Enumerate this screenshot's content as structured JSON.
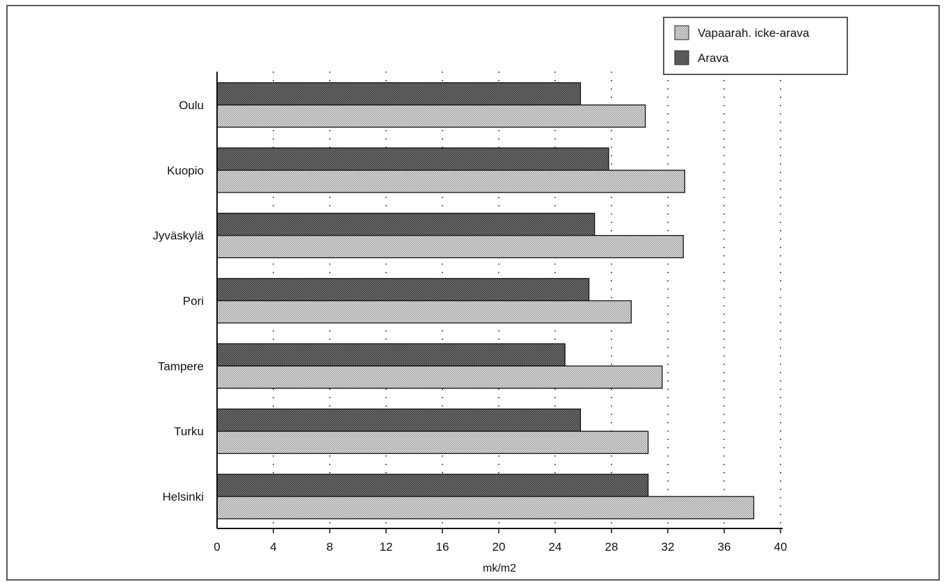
{
  "chart_data": {
    "type": "bar",
    "orientation": "horizontal",
    "categories": [
      "Oulu",
      "Kuopio",
      "Jyväskylä",
      "Pori",
      "Tampere",
      "Turku",
      "Helsinki"
    ],
    "series": [
      {
        "name": "Arava",
        "values": [
          25.8,
          27.8,
          26.8,
          26.4,
          24.7,
          25.8,
          30.6
        ],
        "color": "#5a5a5a"
      },
      {
        "name": "Vapaarah. icke-arava",
        "values": [
          30.4,
          33.2,
          33.1,
          29.4,
          31.6,
          30.6,
          38.1
        ],
        "color": "#c8c8c8"
      }
    ],
    "xlabel": "mk/m2",
    "ylabel": "",
    "xlim": [
      0,
      40
    ],
    "xticks": [
      "0",
      "4",
      "8",
      "12",
      "16",
      "20",
      "24",
      "28",
      "32",
      "36",
      "40"
    ],
    "grid": "vertical dotted",
    "legend_position": "top-right"
  }
}
